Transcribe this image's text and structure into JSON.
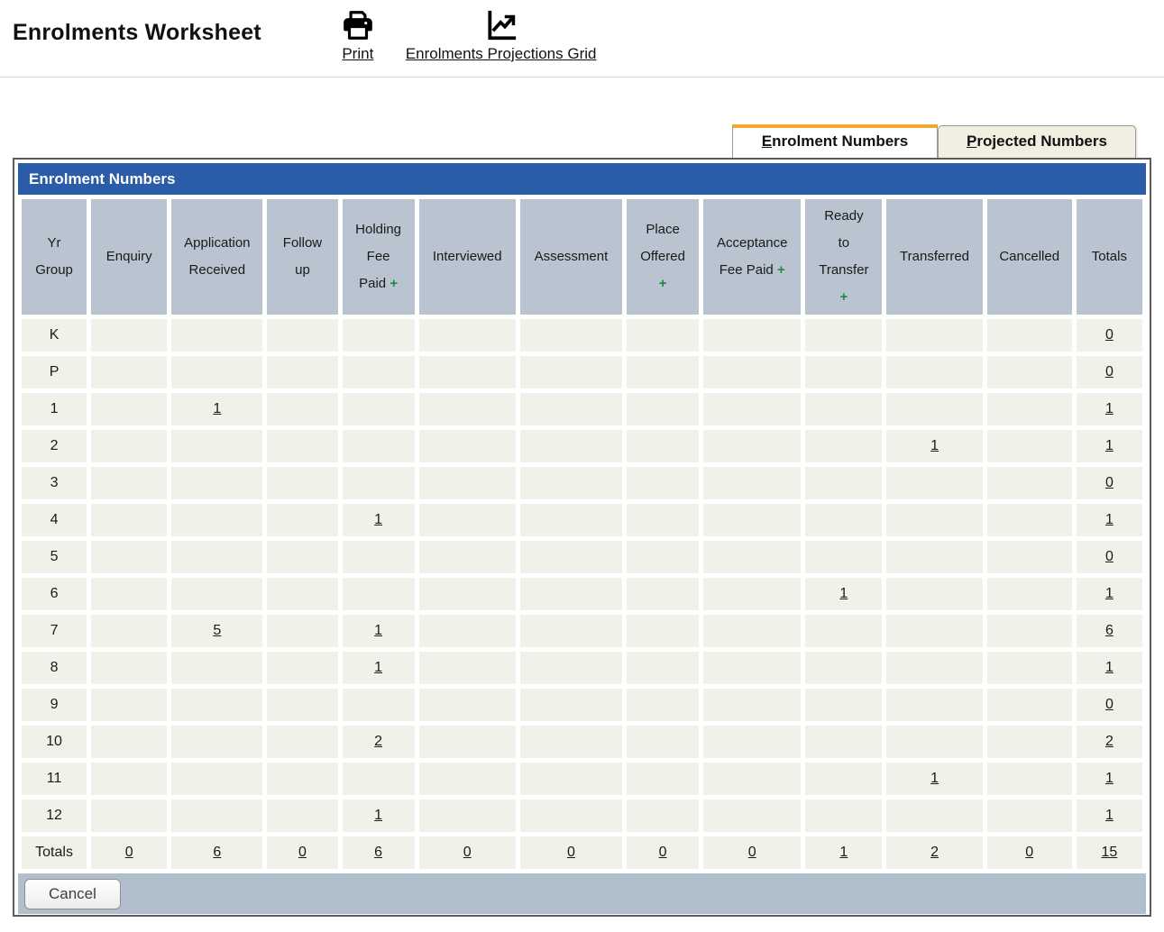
{
  "header": {
    "title": "Enrolments Worksheet",
    "print_label": "Print",
    "projections_label": "Enrolments Projections Grid",
    "icons": [
      "printer-icon",
      "chart-up-arrow-icon"
    ]
  },
  "tabs": [
    {
      "label": "Enrolment Numbers",
      "active": true
    },
    {
      "label": "Projected Numbers",
      "active": false
    }
  ],
  "table": {
    "title": "Enrolment Numbers",
    "columns": [
      {
        "id": "yr_group",
        "lines": [
          "Yr",
          "Group"
        ],
        "plus": null
      },
      {
        "id": "enquiry",
        "lines": [
          "Enquiry"
        ],
        "plus": null
      },
      {
        "id": "application_received",
        "lines": [
          "Application",
          "Received"
        ],
        "plus": null
      },
      {
        "id": "follow_up",
        "lines": [
          "Follow",
          "up"
        ],
        "plus": null
      },
      {
        "id": "holding_fee_paid",
        "lines": [
          "Holding",
          "Fee",
          "Paid"
        ],
        "plus": "inline"
      },
      {
        "id": "interviewed",
        "lines": [
          "Interviewed"
        ],
        "plus": null
      },
      {
        "id": "assessment",
        "lines": [
          "Assessment"
        ],
        "plus": null
      },
      {
        "id": "place_offered",
        "lines": [
          "Place",
          "Offered"
        ],
        "plus": "below"
      },
      {
        "id": "acceptance_fee_paid",
        "lines": [
          "Acceptance",
          "Fee Paid"
        ],
        "plus": "inline"
      },
      {
        "id": "ready_to_transfer",
        "lines": [
          "Ready",
          "to",
          "Transfer"
        ],
        "plus": "below"
      },
      {
        "id": "transferred",
        "lines": [
          "Transferred"
        ],
        "plus": null
      },
      {
        "id": "cancelled",
        "lines": [
          "Cancelled"
        ],
        "plus": null
      },
      {
        "id": "totals",
        "lines": [
          "Totals"
        ],
        "plus": null
      }
    ],
    "rows": [
      {
        "yr_group": "K",
        "cells": [
          "",
          "",
          "",
          "",
          "",
          "",
          "",
          "",
          "",
          "",
          ""
        ],
        "total": "0"
      },
      {
        "yr_group": "P",
        "cells": [
          "",
          "",
          "",
          "",
          "",
          "",
          "",
          "",
          "",
          "",
          ""
        ],
        "total": "0"
      },
      {
        "yr_group": "1",
        "cells": [
          "",
          "1",
          "",
          "",
          "",
          "",
          "",
          "",
          "",
          "",
          ""
        ],
        "total": "1"
      },
      {
        "yr_group": "2",
        "cells": [
          "",
          "",
          "",
          "",
          "",
          "",
          "",
          "",
          "",
          "1",
          ""
        ],
        "total": "1"
      },
      {
        "yr_group": "3",
        "cells": [
          "",
          "",
          "",
          "",
          "",
          "",
          "",
          "",
          "",
          "",
          ""
        ],
        "total": "0"
      },
      {
        "yr_group": "4",
        "cells": [
          "",
          "",
          "",
          "1",
          "",
          "",
          "",
          "",
          "",
          "",
          ""
        ],
        "total": "1"
      },
      {
        "yr_group": "5",
        "cells": [
          "",
          "",
          "",
          "",
          "",
          "",
          "",
          "",
          "",
          "",
          ""
        ],
        "total": "0"
      },
      {
        "yr_group": "6",
        "cells": [
          "",
          "",
          "",
          "",
          "",
          "",
          "",
          "",
          "1",
          "",
          ""
        ],
        "total": "1"
      },
      {
        "yr_group": "7",
        "cells": [
          "",
          "5",
          "",
          "1",
          "",
          "",
          "",
          "",
          "",
          "",
          ""
        ],
        "total": "6"
      },
      {
        "yr_group": "8",
        "cells": [
          "",
          "",
          "",
          "1",
          "",
          "",
          "",
          "",
          "",
          "",
          ""
        ],
        "total": "1"
      },
      {
        "yr_group": "9",
        "cells": [
          "",
          "",
          "",
          "",
          "",
          "",
          "",
          "",
          "",
          "",
          ""
        ],
        "total": "0"
      },
      {
        "yr_group": "10",
        "cells": [
          "",
          "",
          "",
          "2",
          "",
          "",
          "",
          "",
          "",
          "",
          ""
        ],
        "total": "2"
      },
      {
        "yr_group": "11",
        "cells": [
          "",
          "",
          "",
          "",
          "",
          "",
          "",
          "",
          "",
          "1",
          ""
        ],
        "total": "1"
      },
      {
        "yr_group": "12",
        "cells": [
          "",
          "",
          "",
          "1",
          "",
          "",
          "",
          "",
          "",
          "",
          ""
        ],
        "total": "1"
      }
    ],
    "totals_row": {
      "label": "Totals",
      "cells": [
        "0",
        "6",
        "0",
        "6",
        "0",
        "0",
        "0",
        "0",
        "1",
        "2",
        "0"
      ],
      "total": "15"
    }
  },
  "footer": {
    "cancel_label": "Cancel"
  },
  "colors": {
    "panel_title_bg": "#2a5ca8",
    "column_header_bg": "#b9c4d0",
    "cell_bg": "#f2f1e9",
    "footer_bg": "#b0bfcb",
    "active_tab_accent": "#f2a72e",
    "plus_green": "#1e8a3e",
    "panel_border": "#5b5b5b"
  }
}
